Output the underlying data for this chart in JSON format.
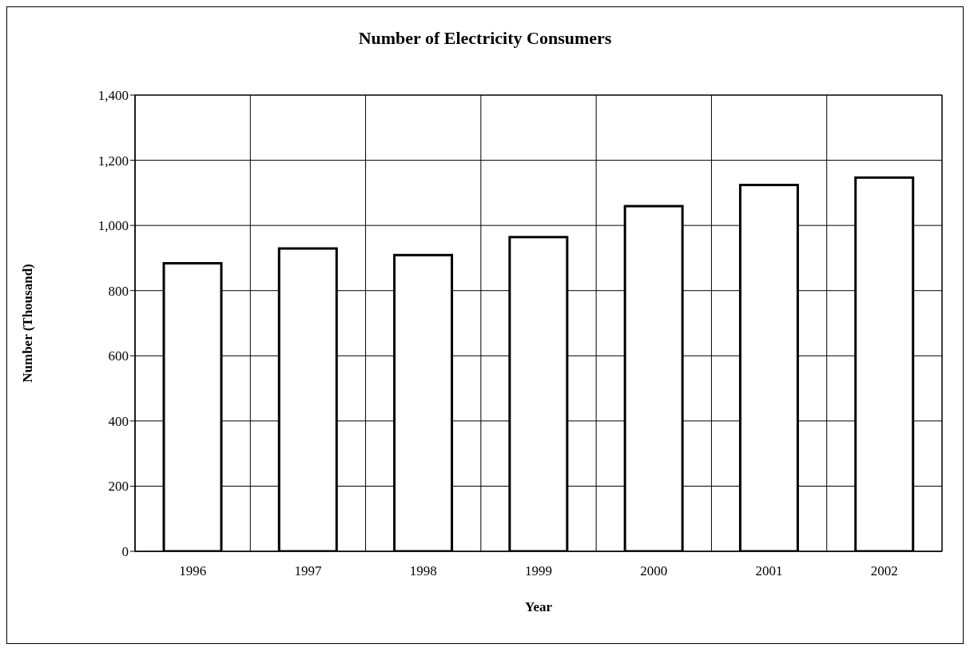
{
  "chart_data": {
    "type": "bar",
    "title": "Number of Electricity Consumers",
    "xlabel": "Year",
    "ylabel": "Number (Thousand)",
    "categories": [
      "1996",
      "1997",
      "1998",
      "1999",
      "2000",
      "2001",
      "2002"
    ],
    "values": [
      884,
      929,
      909,
      964,
      1059,
      1124,
      1147
    ],
    "color": "#ffffff",
    "ylim": [
      0,
      1400
    ],
    "yticks": [
      0,
      200,
      400,
      600,
      800,
      {
        "value": 1000,
        "label": "1,000"
      },
      {
        "value": 1200,
        "label": "1,200"
      },
      {
        "value": 1400,
        "label": "1,400"
      }
    ],
    "grid": true
  }
}
